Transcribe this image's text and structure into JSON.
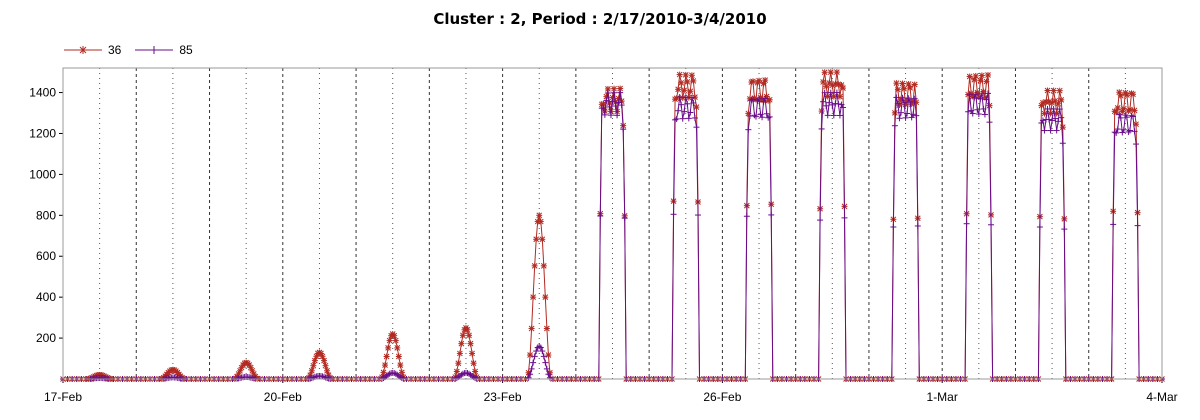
{
  "title": "Cluster : 2, Period : 2/17/2010-3/4/2010",
  "chart_data": {
    "type": "line",
    "title": "Cluster : 2, Period : 2/17/2010-3/4/2010",
    "xlabel": "",
    "ylabel": "",
    "x_range": [
      "17-Feb",
      "4-Mar"
    ],
    "ylim": [
      0,
      1520
    ],
    "x_tick_labels": [
      "17-Feb",
      "20-Feb",
      "23-Feb",
      "26-Feb",
      "1-Mar",
      "4-Mar"
    ],
    "y_tick_labels": [
      "200",
      "400",
      "600",
      "800",
      "1000",
      "1200",
      "1400"
    ],
    "grid": "vertical dotted lines at 12:00 of each day, dashed vertical lines at midnight",
    "legend": "top-left",
    "colors": {
      "36": "#b22a22",
      "85": "#6a0d8a",
      "grid": "#555555",
      "frame": "#999999"
    },
    "series": [
      {
        "name": "36",
        "marker": "asterisk",
        "daily_peak": {
          "17-Feb": 20,
          "18-Feb": 45,
          "19-Feb": 80,
          "20-Feb": 130,
          "21-Feb": 220,
          "22-Feb": 250,
          "23-Feb": 800,
          "24-Feb": 1420,
          "25-Feb": 1490,
          "26-Feb": 1470,
          "27-Feb": 1500,
          "28-Feb": 1450,
          "1-Mar": 1490,
          "2-Mar": 1410,
          "3-Mar": 1410
        }
      },
      {
        "name": "85",
        "marker": "plus",
        "daily_peak": {
          "17-Feb": 5,
          "18-Feb": 8,
          "19-Feb": 10,
          "20-Feb": 15,
          "21-Feb": 30,
          "22-Feb": 30,
          "23-Feb": 160,
          "24-Feb": 1400,
          "25-Feb": 1380,
          "26-Feb": 1380,
          "27-Feb": 1400,
          "28-Feb": 1380,
          "1-Mar": 1400,
          "2-Mar": 1320,
          "3-Mar": 1300
        }
      }
    ]
  }
}
